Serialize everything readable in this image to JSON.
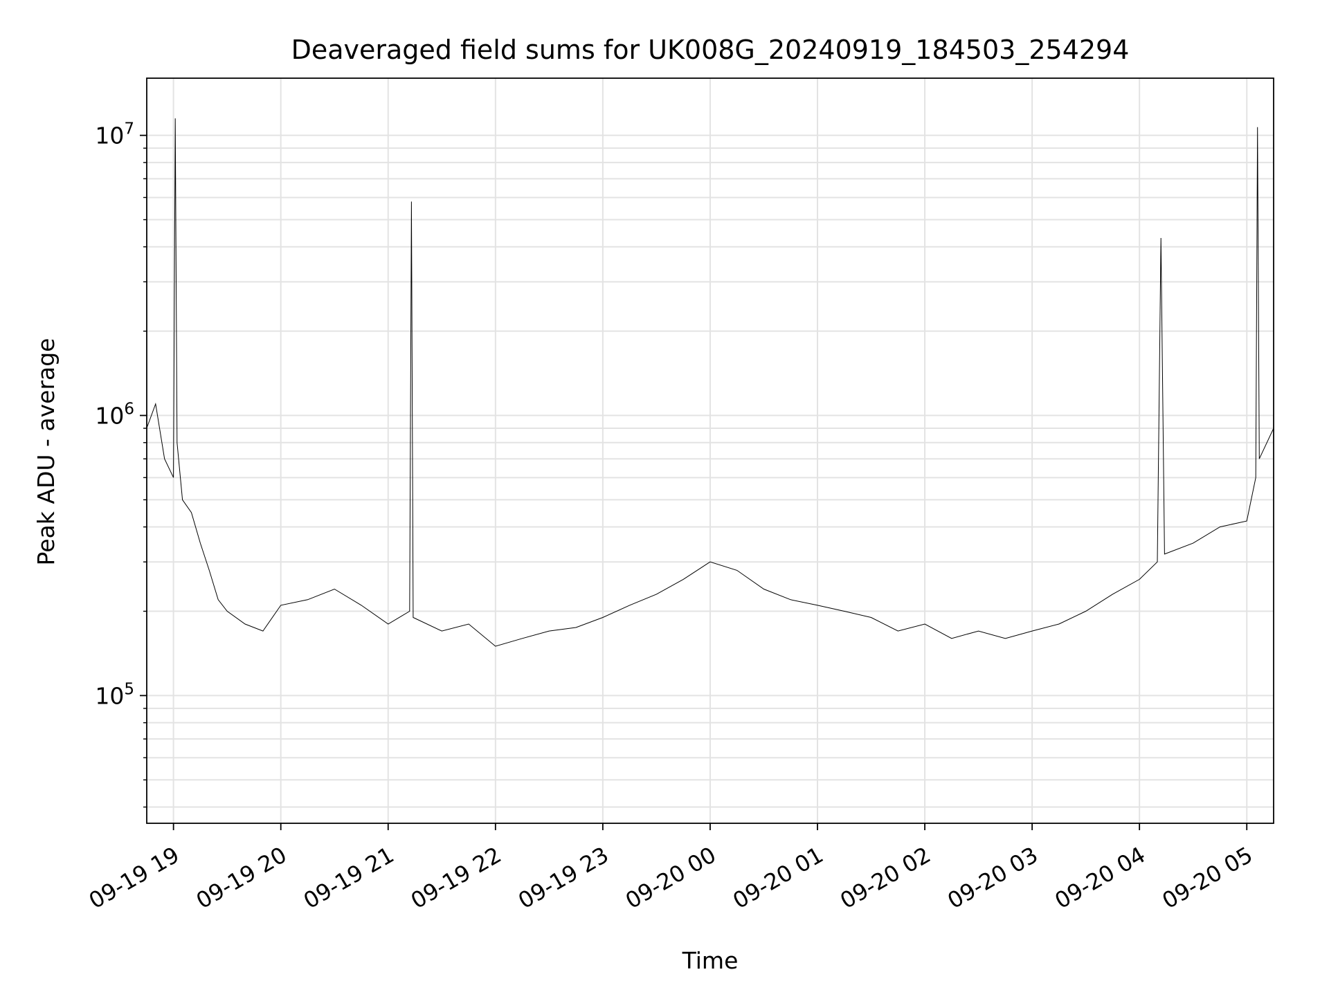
{
  "chart_data": {
    "type": "line",
    "title": "Deaveraged field sums for UK008G_20240919_184503_254294",
    "xlabel": "Time",
    "ylabel": "Peak ADU - average",
    "yscale": "log",
    "ylim": [
      35000,
      16000000
    ],
    "xlim": [
      "2024-09-19 18:45:03",
      "2024-09-20 05:15:00"
    ],
    "grid": true,
    "line_color": "#000000",
    "x_ticks": [
      {
        "value": "2024-09-19 19:00",
        "label": "09-19 19"
      },
      {
        "value": "2024-09-19 20:00",
        "label": "09-19 20"
      },
      {
        "value": "2024-09-19 21:00",
        "label": "09-19 21"
      },
      {
        "value": "2024-09-19 22:00",
        "label": "09-19 22"
      },
      {
        "value": "2024-09-19 23:00",
        "label": "09-19 23"
      },
      {
        "value": "2024-09-20 00:00",
        "label": "09-20 00"
      },
      {
        "value": "2024-09-20 01:00",
        "label": "09-20 01"
      },
      {
        "value": "2024-09-20 02:00",
        "label": "09-20 02"
      },
      {
        "value": "2024-09-20 03:00",
        "label": "09-20 03"
      },
      {
        "value": "2024-09-20 04:00",
        "label": "09-20 04"
      },
      {
        "value": "2024-09-20 05:00",
        "label": "09-20 05"
      }
    ],
    "y_ticks": [
      {
        "value": 100000,
        "base": "10",
        "exp": "5"
      },
      {
        "value": 1000000,
        "base": "10",
        "exp": "6"
      },
      {
        "value": 10000000,
        "base": "10",
        "exp": "7"
      }
    ],
    "series": [
      {
        "x": [
          "2024-09-19 18:45",
          "2024-09-19 18:50",
          "2024-09-19 18:55",
          "2024-09-19 19:00",
          "2024-09-19 19:01",
          "2024-09-19 19:02",
          "2024-09-19 19:05",
          "2024-09-19 19:10",
          "2024-09-19 19:15",
          "2024-09-19 19:20",
          "2024-09-19 19:25",
          "2024-09-19 19:30",
          "2024-09-19 19:40",
          "2024-09-19 19:50",
          "2024-09-19 20:00",
          "2024-09-19 20:15",
          "2024-09-19 20:30",
          "2024-09-19 20:45",
          "2024-09-19 21:00",
          "2024-09-19 21:12",
          "2024-09-19 21:13",
          "2024-09-19 21:14",
          "2024-09-19 21:30",
          "2024-09-19 21:45",
          "2024-09-19 22:00",
          "2024-09-19 22:15",
          "2024-09-19 22:30",
          "2024-09-19 22:45",
          "2024-09-19 23:00",
          "2024-09-19 23:15",
          "2024-09-19 23:30",
          "2024-09-19 23:45",
          "2024-09-20 00:00",
          "2024-09-20 00:15",
          "2024-09-20 00:30",
          "2024-09-20 00:45",
          "2024-09-20 01:00",
          "2024-09-20 01:15",
          "2024-09-20 01:30",
          "2024-09-20 01:45",
          "2024-09-20 02:00",
          "2024-09-20 02:15",
          "2024-09-20 02:30",
          "2024-09-20 02:45",
          "2024-09-20 03:00",
          "2024-09-20 03:15",
          "2024-09-20 03:30",
          "2024-09-20 03:45",
          "2024-09-20 04:00",
          "2024-09-20 04:10",
          "2024-09-20 04:12",
          "2024-09-20 04:14",
          "2024-09-20 04:30",
          "2024-09-20 04:45",
          "2024-09-20 05:00",
          "2024-09-20 05:05",
          "2024-09-20 05:06",
          "2024-09-20 05:07",
          "2024-09-20 05:15"
        ],
        "y": [
          900000,
          1100000,
          700000,
          600000,
          11500000,
          800000,
          500000,
          450000,
          350000,
          280000,
          220000,
          200000,
          180000,
          170000,
          210000,
          220000,
          240000,
          210000,
          180000,
          200000,
          5800000,
          190000,
          170000,
          180000,
          150000,
          160000,
          170000,
          175000,
          190000,
          210000,
          230000,
          260000,
          300000,
          280000,
          240000,
          220000,
          210000,
          200000,
          190000,
          170000,
          180000,
          160000,
          170000,
          160000,
          170000,
          180000,
          200000,
          230000,
          260000,
          300000,
          4300000,
          320000,
          350000,
          400000,
          420000,
          600000,
          10700000,
          700000,
          900000
        ]
      }
    ]
  }
}
